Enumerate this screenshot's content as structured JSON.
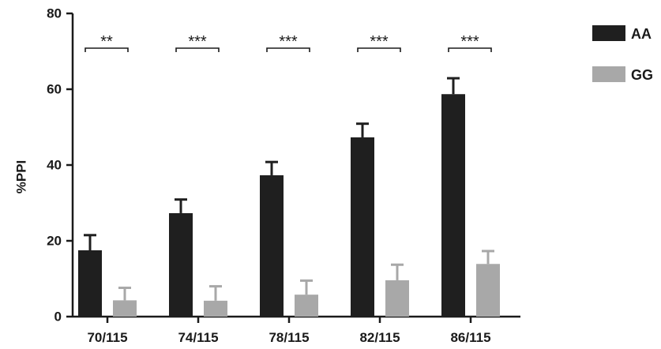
{
  "chart_data": {
    "type": "bar",
    "title": "",
    "xlabel": "",
    "ylabel": "%PPI",
    "ylim": [
      0,
      80
    ],
    "yticks": [
      0,
      20,
      40,
      60,
      80
    ],
    "grid": false,
    "legend_position": "top-right",
    "categories": [
      "70/115",
      "74/115",
      "78/115",
      "82/115",
      "86/115"
    ],
    "series": [
      {
        "name": "AA",
        "color": "#1f1f1f",
        "values": [
          17.5,
          27.3,
          37.3,
          47.3,
          58.7
        ],
        "errors": [
          4.0,
          3.6,
          3.5,
          3.6,
          4.2
        ]
      },
      {
        "name": "GG",
        "color": "#a8a8a8",
        "values": [
          4.3,
          4.2,
          5.8,
          9.6,
          13.9
        ],
        "errors": [
          3.3,
          3.8,
          3.7,
          4.1,
          3.4
        ]
      }
    ],
    "significance": [
      "**",
      "***",
      "***",
      "***",
      "***"
    ]
  }
}
